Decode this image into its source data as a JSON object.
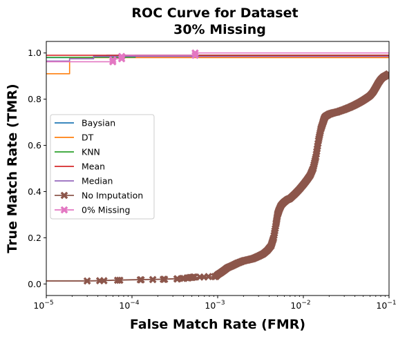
{
  "chart_data": {
    "type": "line",
    "title": "ROC Curve for Dataset",
    "subtitle": "30% Missing",
    "xlabel": "False Match Rate (FMR)",
    "ylabel": "True Match Rate (TMR)",
    "xscale": "log",
    "xlim": [
      1e-05,
      0.1
    ],
    "ylim": [
      -0.05,
      1.05
    ],
    "x_ticks": [
      {
        "value": 1e-05,
        "base": "10",
        "exp": "−5"
      },
      {
        "value": 0.0001,
        "base": "10",
        "exp": "−4"
      },
      {
        "value": 0.001,
        "base": "10",
        "exp": "−3"
      },
      {
        "value": 0.01,
        "base": "10",
        "exp": "−2"
      },
      {
        "value": 0.1,
        "base": "10",
        "exp": "−1"
      }
    ],
    "y_ticks": [
      "0.0",
      "0.2",
      "0.4",
      "0.6",
      "0.8",
      "1.0"
    ],
    "grid": false,
    "legend_position": "center-left",
    "series": [
      {
        "name": "Baysian",
        "color": "#1f77b4",
        "marker": "none",
        "step": true,
        "x": [
          1e-05,
          1.87e-05,
          1.87e-05,
          3.57e-05,
          3.57e-05,
          5.05e-05,
          5.05e-05,
          0.1
        ],
        "y": [
          0.98,
          0.98,
          0.98,
          0.98,
          0.988,
          0.988,
          0.99,
          0.99
        ]
      },
      {
        "name": "DT",
        "color": "#ff7f0e",
        "marker": "none",
        "step": true,
        "x": [
          1e-05,
          1.87e-05,
          1.87e-05,
          0.1
        ],
        "y": [
          0.91,
          0.91,
          0.98,
          0.98
        ]
      },
      {
        "name": "KNN",
        "color": "#2ca02c",
        "marker": "none",
        "step": true,
        "x": [
          1e-05,
          0.000109,
          0.000109,
          0.1
        ],
        "y": [
          0.981,
          0.981,
          0.99,
          0.99
        ]
      },
      {
        "name": "Mean",
        "color": "#d62728",
        "marker": "none",
        "step": true,
        "x": [
          1e-05,
          0.1
        ],
        "y": [
          0.99,
          0.99
        ]
      },
      {
        "name": "Median",
        "color": "#9467bd",
        "marker": "none",
        "step": true,
        "x": [
          1e-05,
          1.87e-05,
          1.87e-05,
          3.57e-05,
          3.57e-05,
          0.1
        ],
        "y": [
          0.965,
          0.965,
          0.975,
          0.975,
          0.985,
          0.985
        ]
      },
      {
        "name": "No Imputation",
        "color": "#8c564b",
        "marker": "X",
        "step": false,
        "x": [
          1e-05,
          3e-05,
          4e-05,
          6e-05,
          0.0001,
          0.00015,
          0.0002,
          0.0003,
          0.0004,
          0.0005,
          0.0006,
          0.0007,
          0.0008,
          0.00095,
          0.001,
          0.0011,
          0.0012,
          0.0013,
          0.0015,
          0.0017,
          0.002,
          0.0023,
          0.0026,
          0.003,
          0.0034,
          0.0038,
          0.0042,
          0.0045,
          0.0048,
          0.005,
          0.0052,
          0.0055,
          0.0058,
          0.006,
          0.0065,
          0.007,
          0.008,
          0.009,
          0.01,
          0.011,
          0.012,
          0.013,
          0.014,
          0.015,
          0.016,
          0.017,
          0.0175,
          0.018,
          0.019,
          0.02,
          0.022,
          0.025,
          0.03,
          0.035,
          0.04,
          0.045,
          0.05,
          0.055,
          0.06,
          0.065,
          0.07,
          0.075,
          0.08,
          0.085,
          0.09,
          0.095,
          0.1
        ],
        "y": [
          0.013,
          0.013,
          0.014,
          0.016,
          0.018,
          0.019,
          0.02,
          0.022,
          0.024,
          0.026,
          0.028,
          0.028,
          0.03,
          0.032,
          0.04,
          0.05,
          0.06,
          0.07,
          0.08,
          0.09,
          0.1,
          0.105,
          0.11,
          0.12,
          0.13,
          0.145,
          0.165,
          0.2,
          0.26,
          0.3,
          0.32,
          0.34,
          0.35,
          0.355,
          0.365,
          0.37,
          0.39,
          0.41,
          0.43,
          0.45,
          0.47,
          0.5,
          0.55,
          0.62,
          0.67,
          0.7,
          0.715,
          0.725,
          0.73,
          0.735,
          0.74,
          0.745,
          0.755,
          0.765,
          0.775,
          0.785,
          0.795,
          0.805,
          0.815,
          0.83,
          0.85,
          0.87,
          0.885,
          0.895,
          0.9,
          0.905,
          0.91
        ]
      },
      {
        "name": "0% Missing",
        "color": "#e377c2",
        "marker": "X",
        "step": true,
        "x": [
          1e-05,
          5.97e-05,
          5.97e-05,
          7.58e-05,
          7.58e-05,
          0.000546,
          0.000546,
          0.1
        ],
        "y": [
          0.962,
          0.962,
          0.975,
          0.975,
          0.99,
          0.99,
          1.0,
          1.0
        ]
      }
    ],
    "marker_points": {
      "No Imputation": [
        [
          3e-05,
          0.013
        ],
        [
          4.2e-05,
          0.014
        ],
        [
          4.7e-05,
          0.014
        ],
        [
          6.8e-05,
          0.016
        ],
        [
          7.2e-05,
          0.016
        ],
        [
          0.000125,
          0.018
        ],
        [
          0.000128,
          0.018
        ],
        [
          0.000175,
          0.019
        ],
        [
          0.000232,
          0.02
        ],
        [
          0.00024,
          0.02
        ],
        [
          0.000335,
          0.022
        ],
        [
          0.00034,
          0.022
        ],
        [
          0.00039,
          0.024
        ],
        [
          0.000405,
          0.024
        ],
        [
          0.00044,
          0.026
        ],
        [
          0.000455,
          0.026
        ],
        [
          0.000475,
          0.028
        ],
        [
          0.00049,
          0.028
        ],
        [
          0.000505,
          0.028
        ],
        [
          0.00052,
          0.03
        ],
        [
          0.000535,
          0.03
        ],
        [
          0.00062,
          0.03
        ],
        [
          0.00069,
          0.03
        ],
        [
          0.00078,
          0.032
        ],
        [
          0.00092,
          0.032
        ]
      ],
      "0% Missing": [
        [
          5.97e-05,
          0.962
        ],
        [
          5.97e-05,
          0.97
        ],
        [
          7.58e-05,
          0.975
        ],
        [
          7.58e-05,
          0.985
        ],
        [
          0.000546,
          0.99
        ],
        [
          0.000546,
          1.0
        ]
      ]
    }
  }
}
